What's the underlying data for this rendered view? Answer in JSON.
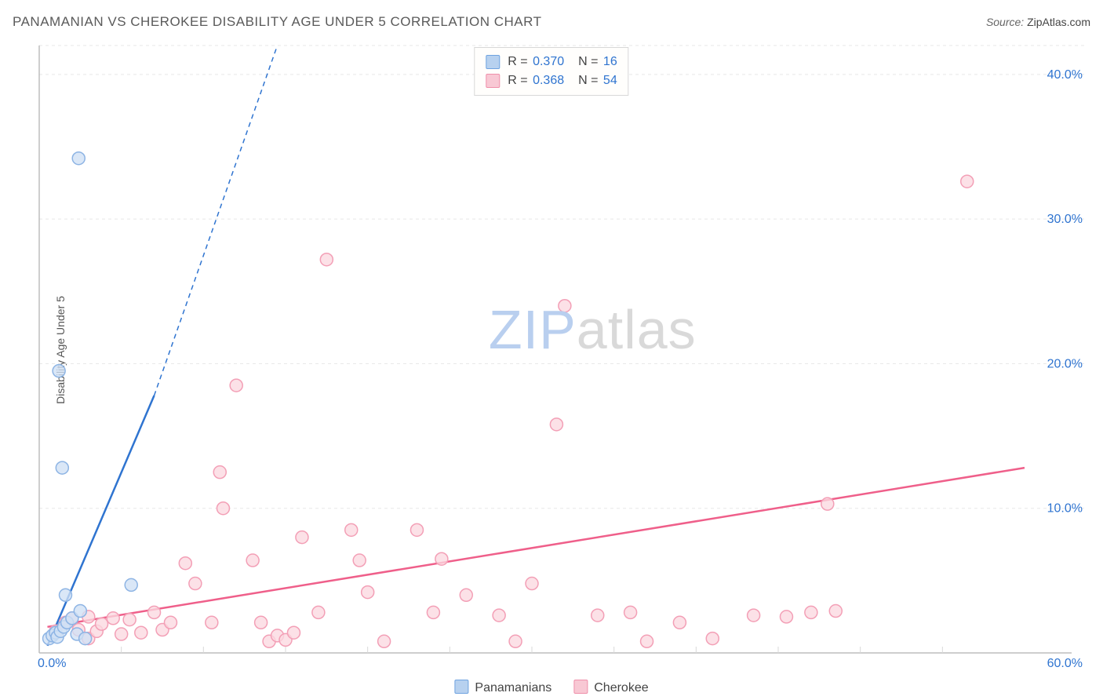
{
  "title": "PANAMANIAN VS CHEROKEE DISABILITY AGE UNDER 5 CORRELATION CHART",
  "source_label": "Source: ",
  "source_name": "ZipAtlas.com",
  "ylabel": "Disability Age Under 5",
  "watermark_a": "ZIP",
  "watermark_b": "atlas",
  "chart": {
    "type": "scatter",
    "xlim": [
      0,
      60
    ],
    "ylim": [
      0,
      42
    ],
    "x_axis_min_label": "0.0%",
    "x_axis_max_label": "60.0%",
    "y_grid": [
      10,
      20,
      30,
      40
    ],
    "y_grid_labels": [
      "10.0%",
      "20.0%",
      "30.0%",
      "40.0%"
    ],
    "x_ticks": [
      5,
      10,
      15,
      20,
      25,
      30,
      35,
      40,
      45,
      50,
      55
    ],
    "background_color": "#ffffff",
    "grid_color": "#e7e7e7",
    "axis_color": "#bdbdbd",
    "axis_label_color": "#2f74d0",
    "series": {
      "panamanians": {
        "label": "Panamanians",
        "point_fill": "#cfe0f5",
        "point_stroke": "#8db4e4",
        "line_color": "#2f74d0",
        "line_width": 2.5,
        "swatch_fill": "#b7d1ef",
        "swatch_stroke": "#6fa3e0",
        "r_value": "0.370",
        "n_value": "16",
        "trend": {
          "x1": 0.5,
          "y1": 0.5,
          "x2_solid": 7.0,
          "y2_solid": 17.8,
          "x2_dash": 14.5,
          "y2_dash": 42.0
        },
        "points": [
          [
            0.6,
            1.0
          ],
          [
            0.8,
            1.2
          ],
          [
            1.0,
            1.4
          ],
          [
            1.1,
            1.1
          ],
          [
            1.3,
            1.5
          ],
          [
            1.5,
            1.8
          ],
          [
            1.7,
            2.1
          ],
          [
            2.0,
            2.4
          ],
          [
            2.3,
            1.3
          ],
          [
            2.5,
            2.9
          ],
          [
            2.8,
            1.0
          ],
          [
            1.6,
            4.0
          ],
          [
            5.6,
            4.7
          ],
          [
            1.4,
            12.8
          ],
          [
            1.2,
            19.5
          ],
          [
            2.4,
            34.2
          ]
        ]
      },
      "cherokee": {
        "label": "Cherokee",
        "point_fill": "#fbd8e0",
        "point_stroke": "#f39fb6",
        "line_color": "#ef5f8a",
        "line_width": 2.5,
        "swatch_fill": "#f8c8d4",
        "swatch_stroke": "#ef8faa",
        "r_value": "0.368",
        "n_value": "54",
        "trend": {
          "x1": 0.5,
          "y1": 1.8,
          "x2": 60.0,
          "y2": 12.8
        },
        "points": [
          [
            1.0,
            1.5
          ],
          [
            1.6,
            2.1
          ],
          [
            2.0,
            2.4
          ],
          [
            2.4,
            1.6
          ],
          [
            3.0,
            2.5
          ],
          [
            3.0,
            1.0
          ],
          [
            3.5,
            1.5
          ],
          [
            3.8,
            2.0
          ],
          [
            4.5,
            2.4
          ],
          [
            5.0,
            1.3
          ],
          [
            5.5,
            2.3
          ],
          [
            6.2,
            1.4
          ],
          [
            7.0,
            2.8
          ],
          [
            7.5,
            1.6
          ],
          [
            8.0,
            2.1
          ],
          [
            8.9,
            6.2
          ],
          [
            9.5,
            4.8
          ],
          [
            10.5,
            2.1
          ],
          [
            11.0,
            12.5
          ],
          [
            11.2,
            10.0
          ],
          [
            12.0,
            18.5
          ],
          [
            13.0,
            6.4
          ],
          [
            13.5,
            2.1
          ],
          [
            14.0,
            0.8
          ],
          [
            14.5,
            1.2
          ],
          [
            15.0,
            0.9
          ],
          [
            15.5,
            1.4
          ],
          [
            16.0,
            8.0
          ],
          [
            17.0,
            2.8
          ],
          [
            17.5,
            27.2
          ],
          [
            19.0,
            8.5
          ],
          [
            19.5,
            6.4
          ],
          [
            20.0,
            4.2
          ],
          [
            21.0,
            0.8
          ],
          [
            23.0,
            8.5
          ],
          [
            24.0,
            2.8
          ],
          [
            24.5,
            6.5
          ],
          [
            26.0,
            4.0
          ],
          [
            28.0,
            2.6
          ],
          [
            29.0,
            0.8
          ],
          [
            30.0,
            4.8
          ],
          [
            31.5,
            15.8
          ],
          [
            32.0,
            24.0
          ],
          [
            34.0,
            2.6
          ],
          [
            36.0,
            2.8
          ],
          [
            37.0,
            0.8
          ],
          [
            39.0,
            2.1
          ],
          [
            41.0,
            1.0
          ],
          [
            43.5,
            2.6
          ],
          [
            45.5,
            2.5
          ],
          [
            47.0,
            2.8
          ],
          [
            48.0,
            10.3
          ],
          [
            48.5,
            2.9
          ],
          [
            56.5,
            32.6
          ]
        ]
      }
    },
    "marker_radius": 8,
    "marker_stroke_width": 1.5,
    "marker_opacity": 0.78
  },
  "legend_labels": {
    "R": "R =",
    "N": "N ="
  }
}
